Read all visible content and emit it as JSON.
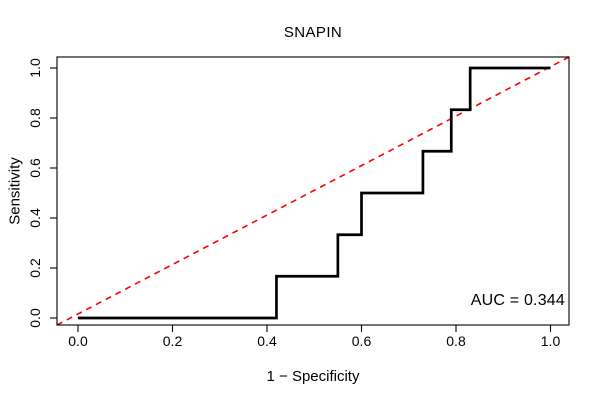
{
  "chart_data": {
    "type": "line",
    "subtype": "roc-curve",
    "title": "SNAPIN",
    "xlabel": "1 − Specificity",
    "ylabel": "Sensitivity",
    "annotation": "AUC = 0.344",
    "auc_value": "0.344",
    "xlim": [
      0,
      1
    ],
    "ylim": [
      0,
      1
    ],
    "grid": false,
    "x_ticks": [
      0.0,
      0.2,
      0.4,
      0.6,
      0.8,
      1.0
    ],
    "y_ticks": [
      0.0,
      0.2,
      0.4,
      0.6,
      0.8,
      1.0
    ],
    "xtick_labels": [
      "0.0",
      "0.2",
      "0.4",
      "0.6",
      "0.8",
      "1.0"
    ],
    "ytick_labels": [
      "0.0",
      "0.2",
      "0.4",
      "0.6",
      "0.8",
      "1.0"
    ],
    "colors": {
      "roc_curve": "#000000",
      "reference_diagonal": "#ff0000",
      "axis": "#000000",
      "background": "#ffffff"
    },
    "series": [
      {
        "name": "ROC curve",
        "color": "#000000",
        "line_style": "solid",
        "points": [
          [
            0,
            0
          ],
          [
            0.42,
            0
          ],
          [
            0.42,
            0.167
          ],
          [
            0.55,
            0.167
          ],
          [
            0.55,
            0.333
          ],
          [
            0.6,
            0.333
          ],
          [
            0.6,
            0.5
          ],
          [
            0.73,
            0.5
          ],
          [
            0.73,
            0.667
          ],
          [
            0.79,
            0.667
          ],
          [
            0.79,
            0.833
          ],
          [
            0.83,
            0.833
          ],
          [
            0.83,
            1
          ],
          [
            1,
            1
          ]
        ]
      },
      {
        "name": "Chance diagonal",
        "color": "#ff0000",
        "line_style": "dashed",
        "spans_full_plot_box": true,
        "points": [
          [
            0,
            0
          ],
          [
            1,
            1
          ]
        ]
      }
    ]
  }
}
